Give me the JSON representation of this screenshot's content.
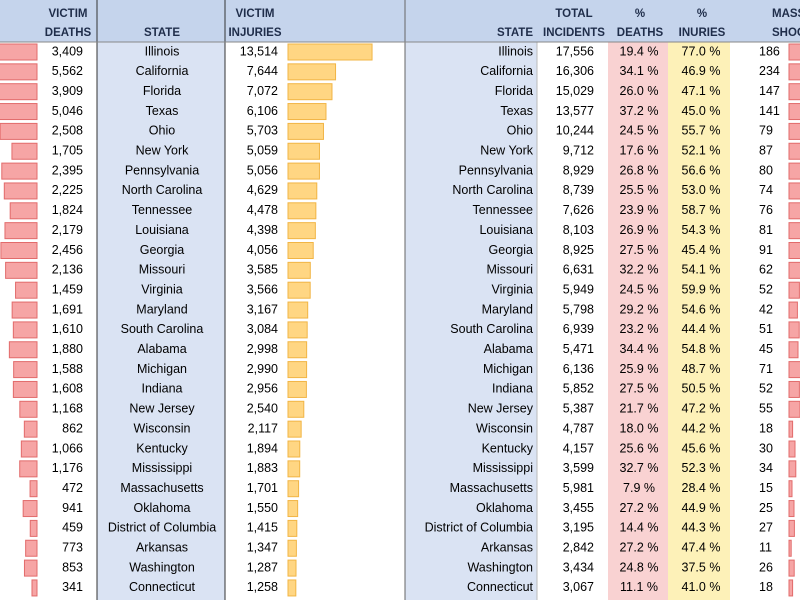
{
  "header": {
    "deaths": [
      "VICTIM",
      "DEATHS"
    ],
    "state": "STATE",
    "injuries": [
      "VICTIM",
      "INJURIES"
    ],
    "state2": "STATE",
    "incidents": [
      "TOTAL",
      "INCIDENTS"
    ],
    "pct_deaths": [
      "%",
      "DEATHS"
    ],
    "pct_injuries": [
      "%",
      "INURIES"
    ],
    "mass": [
      "MASS",
      "SHOOTINGS"
    ]
  },
  "rows": [
    {
      "state": "Illinois",
      "deaths": {
        "value": 3409,
        "label": "3,409"
      },
      "injuries": {
        "value": 13514,
        "label": "13,514"
      },
      "incidents": "17,556",
      "pct_deaths": "19.4 %",
      "pct_injuries": "77.0 %",
      "mass": 186
    },
    {
      "state": "California",
      "deaths": {
        "value": 5562,
        "label": "5,562"
      },
      "injuries": {
        "value": 7644,
        "label": "7,644"
      },
      "incidents": "16,306",
      "pct_deaths": "34.1 %",
      "pct_injuries": "46.9 %",
      "mass": 234
    },
    {
      "state": "Florida",
      "deaths": {
        "value": 3909,
        "label": "3,909"
      },
      "injuries": {
        "value": 7072,
        "label": "7,072"
      },
      "incidents": "15,029",
      "pct_deaths": "26.0 %",
      "pct_injuries": "47.1 %",
      "mass": 147
    },
    {
      "state": "Texas",
      "deaths": {
        "value": 5046,
        "label": "5,046"
      },
      "injuries": {
        "value": 6106,
        "label": "6,106"
      },
      "incidents": "13,577",
      "pct_deaths": "37.2 %",
      "pct_injuries": "45.0 %",
      "mass": 141
    },
    {
      "state": "Ohio",
      "deaths": {
        "value": 2508,
        "label": "2,508"
      },
      "injuries": {
        "value": 5703,
        "label": "5,703"
      },
      "incidents": "10,244",
      "pct_deaths": "24.5 %",
      "pct_injuries": "55.7 %",
      "mass": 79
    },
    {
      "state": "New York",
      "deaths": {
        "value": 1705,
        "label": "1,705"
      },
      "injuries": {
        "value": 5059,
        "label": "5,059"
      },
      "incidents": "9,712",
      "pct_deaths": "17.6 %",
      "pct_injuries": "52.1 %",
      "mass": 87
    },
    {
      "state": "Pennsylvania",
      "deaths": {
        "value": 2395,
        "label": "2,395"
      },
      "injuries": {
        "value": 5056,
        "label": "5,056"
      },
      "incidents": "8,929",
      "pct_deaths": "26.8 %",
      "pct_injuries": "56.6 %",
      "mass": 80
    },
    {
      "state": "North Carolina",
      "deaths": {
        "value": 2225,
        "label": "2,225"
      },
      "injuries": {
        "value": 4629,
        "label": "4,629"
      },
      "incidents": "8,739",
      "pct_deaths": "25.5 %",
      "pct_injuries": "53.0 %",
      "mass": 74
    },
    {
      "state": "Tennessee",
      "deaths": {
        "value": 1824,
        "label": "1,824"
      },
      "injuries": {
        "value": 4478,
        "label": "4,478"
      },
      "incidents": "7,626",
      "pct_deaths": "23.9 %",
      "pct_injuries": "58.7 %",
      "mass": 76
    },
    {
      "state": "Louisiana",
      "deaths": {
        "value": 2179,
        "label": "2,179"
      },
      "injuries": {
        "value": 4398,
        "label": "4,398"
      },
      "incidents": "8,103",
      "pct_deaths": "26.9 %",
      "pct_injuries": "54.3 %",
      "mass": 81
    },
    {
      "state": "Georgia",
      "deaths": {
        "value": 2456,
        "label": "2,456"
      },
      "injuries": {
        "value": 4056,
        "label": "4,056"
      },
      "incidents": "8,925",
      "pct_deaths": "27.5 %",
      "pct_injuries": "45.4 %",
      "mass": 91
    },
    {
      "state": "Missouri",
      "deaths": {
        "value": 2136,
        "label": "2,136"
      },
      "injuries": {
        "value": 3585,
        "label": "3,585"
      },
      "incidents": "6,631",
      "pct_deaths": "32.2 %",
      "pct_injuries": "54.1 %",
      "mass": 62
    },
    {
      "state": "Virginia",
      "deaths": {
        "value": 1459,
        "label": "1,459"
      },
      "injuries": {
        "value": 3566,
        "label": "3,566"
      },
      "incidents": "5,949",
      "pct_deaths": "24.5 %",
      "pct_injuries": "59.9 %",
      "mass": 52
    },
    {
      "state": "Maryland",
      "deaths": {
        "value": 1691,
        "label": "1,691"
      },
      "injuries": {
        "value": 3167,
        "label": "3,167"
      },
      "incidents": "5,798",
      "pct_deaths": "29.2 %",
      "pct_injuries": "54.6 %",
      "mass": 42
    },
    {
      "state": "South Carolina",
      "deaths": {
        "value": 1610,
        "label": "1,610"
      },
      "injuries": {
        "value": 3084,
        "label": "3,084"
      },
      "incidents": "6,939",
      "pct_deaths": "23.2 %",
      "pct_injuries": "44.4 %",
      "mass": 51
    },
    {
      "state": "Alabama",
      "deaths": {
        "value": 1880,
        "label": "1,880"
      },
      "injuries": {
        "value": 2998,
        "label": "2,998"
      },
      "incidents": "5,471",
      "pct_deaths": "34.4 %",
      "pct_injuries": "54.8 %",
      "mass": 45
    },
    {
      "state": "Michigan",
      "deaths": {
        "value": 1588,
        "label": "1,588"
      },
      "injuries": {
        "value": 2990,
        "label": "2,990"
      },
      "incidents": "6,136",
      "pct_deaths": "25.9 %",
      "pct_injuries": "48.7 %",
      "mass": 71
    },
    {
      "state": "Indiana",
      "deaths": {
        "value": 1608,
        "label": "1,608"
      },
      "injuries": {
        "value": 2956,
        "label": "2,956"
      },
      "incidents": "5,852",
      "pct_deaths": "27.5 %",
      "pct_injuries": "50.5 %",
      "mass": 52
    },
    {
      "state": "New Jersey",
      "deaths": {
        "value": 1168,
        "label": "1,168"
      },
      "injuries": {
        "value": 2540,
        "label": "2,540"
      },
      "incidents": "5,387",
      "pct_deaths": "21.7 %",
      "pct_injuries": "47.2 %",
      "mass": 55
    },
    {
      "state": "Wisconsin",
      "deaths": {
        "value": 862,
        "label": "862"
      },
      "injuries": {
        "value": 2117,
        "label": "2,117"
      },
      "incidents": "4,787",
      "pct_deaths": "18.0 %",
      "pct_injuries": "44.2 %",
      "mass": 18
    },
    {
      "state": "Kentucky",
      "deaths": {
        "value": 1066,
        "label": "1,066"
      },
      "injuries": {
        "value": 1894,
        "label": "1,894"
      },
      "incidents": "4,157",
      "pct_deaths": "25.6 %",
      "pct_injuries": "45.6 %",
      "mass": 30
    },
    {
      "state": "Mississippi",
      "deaths": {
        "value": 1176,
        "label": "1,176"
      },
      "injuries": {
        "value": 1883,
        "label": "1,883"
      },
      "incidents": "3,599",
      "pct_deaths": "32.7 %",
      "pct_injuries": "52.3 %",
      "mass": 34
    },
    {
      "state": "Massachusetts",
      "deaths": {
        "value": 472,
        "label": "472"
      },
      "injuries": {
        "value": 1701,
        "label": "1,701"
      },
      "incidents": "5,981",
      "pct_deaths": "7.9 %",
      "pct_injuries": "28.4 %",
      "mass": 15
    },
    {
      "state": "Oklahoma",
      "deaths": {
        "value": 941,
        "label": "941"
      },
      "injuries": {
        "value": 1550,
        "label": "1,550"
      },
      "incidents": "3,455",
      "pct_deaths": "27.2 %",
      "pct_injuries": "44.9 %",
      "mass": 25
    },
    {
      "state": "District of Columbia",
      "deaths": {
        "value": 459,
        "label": "459"
      },
      "injuries": {
        "value": 1415,
        "label": "1,415"
      },
      "incidents": "3,195",
      "pct_deaths": "14.4 %",
      "pct_injuries": "44.3 %",
      "mass": 27
    },
    {
      "state": "Arkansas",
      "deaths": {
        "value": 773,
        "label": "773"
      },
      "injuries": {
        "value": 1347,
        "label": "1,347"
      },
      "incidents": "2,842",
      "pct_deaths": "27.2 %",
      "pct_injuries": "47.4 %",
      "mass": 11
    },
    {
      "state": "Washington",
      "deaths": {
        "value": 853,
        "label": "853"
      },
      "injuries": {
        "value": 1287,
        "label": "1,287"
      },
      "incidents": "3,434",
      "pct_deaths": "24.8 %",
      "pct_injuries": "37.5 %",
      "mass": 26
    },
    {
      "state": "Connecticut",
      "deaths": {
        "value": 341,
        "label": "341"
      },
      "injuries": {
        "value": 1258,
        "label": "1,258"
      },
      "incidents": "3,067",
      "pct_deaths": "11.1 %",
      "pct_injuries": "41.0 %",
      "mass": 18
    }
  ]
}
